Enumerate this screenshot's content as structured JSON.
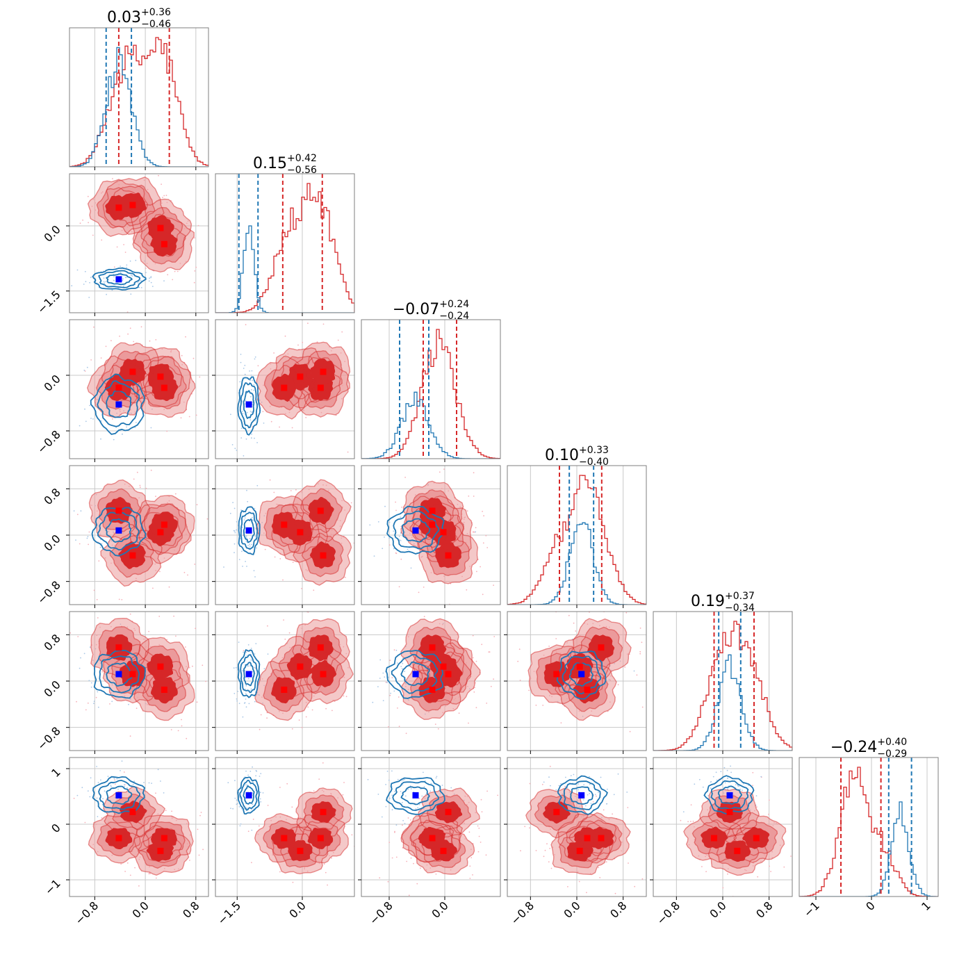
{
  "chart_data": {
    "type": "corner",
    "dimensions": 6,
    "colors": {
      "red_fill_dark": "#d62728",
      "red_fill_light": "#eb9a9b",
      "red_line": "#d62728",
      "blue_line": "#1f77b4",
      "blue_marker": "#0000ff",
      "red_marker": "#ff0000",
      "grid": "#c8c8c8",
      "axis": "#7f7f7f"
    },
    "axes": [
      {
        "range": [
          -1.2,
          1.0
        ],
        "ticks": [
          -0.8,
          0.0,
          0.8
        ],
        "tick_labels": [
          "−0.8",
          "0.0",
          "0.8"
        ]
      },
      {
        "range": [
          -2.0,
          1.2
        ],
        "ticks": [
          -1.5,
          0.0
        ],
        "tick_labels": [
          "−1.5",
          "0.0"
        ]
      },
      {
        "range": [
          -1.2,
          0.8
        ],
        "ticks": [
          -0.8,
          0.0
        ],
        "tick_labels": [
          "−0.8",
          "0.0"
        ]
      },
      {
        "range": [
          -1.2,
          1.2
        ],
        "ticks": [
          -0.8,
          0.0,
          0.8
        ],
        "tick_labels": [
          "−0.8",
          "0.0",
          "0.8"
        ]
      },
      {
        "range": [
          -1.2,
          1.2
        ],
        "ticks": [
          -0.8,
          0.0,
          0.8
        ],
        "tick_labels": [
          "−0.8",
          "0.0",
          "0.8"
        ]
      },
      {
        "range": [
          -1.3,
          1.2
        ],
        "ticks": [
          -1,
          0,
          1
        ],
        "tick_labels": [
          "−1",
          "0",
          "1"
        ]
      }
    ],
    "titles": [
      {
        "value": "0.03",
        "plus": "+0.36",
        "minus": "−0.46"
      },
      {
        "value": "0.15",
        "plus": "+0.42",
        "minus": "−0.56"
      },
      {
        "value": "−0.07",
        "plus": "+0.24",
        "minus": "−0.24"
      },
      {
        "value": "0.10",
        "plus": "+0.33",
        "minus": "−0.40"
      },
      {
        "value": "0.19",
        "plus": "+0.37",
        "minus": "−0.34"
      },
      {
        "value": "−0.24",
        "plus": "+0.40",
        "minus": "−0.29"
      }
    ],
    "blue_truth": [
      -0.42,
      -1.23,
      -0.42,
      0.08,
      0.12,
      0.52
    ],
    "red_modes": [
      [
        -0.42,
        0.42,
        -0.18,
        0.42,
        0.58,
        -0.25
      ],
      [
        -0.2,
        0.48,
        0.05,
        -0.35,
        0.12,
        0.22
      ],
      [
        0.24,
        -0.05,
        -0.02,
        0.05,
        0.25,
        -0.48
      ],
      [
        0.3,
        -0.42,
        -0.18,
        0.18,
        -0.15,
        -0.25
      ]
    ],
    "red_spread": [
      0.24,
      0.33,
      0.22,
      0.26,
      0.26,
      0.22
    ],
    "blue_mean": [
      -0.42,
      -1.23,
      -0.42,
      0.08,
      0.12,
      0.52
    ],
    "blue_sd": [
      0.2,
      0.12,
      0.2,
      0.2,
      0.2,
      0.16
    ],
    "red_quantiles": [
      [
        -0.42,
        0.38
      ],
      [
        -0.45,
        0.46
      ],
      [
        -0.31,
        0.17
      ],
      [
        -0.3,
        0.43
      ],
      [
        -0.15,
        0.54
      ],
      [
        -0.55,
        0.17
      ]
    ],
    "blue_quantiles": [
      [
        -0.62,
        -0.22
      ],
      [
        -1.46,
        -1.02
      ],
      [
        -0.65,
        -0.23
      ],
      [
        -0.13,
        0.29
      ],
      [
        -0.07,
        0.31
      ],
      [
        0.31,
        0.72
      ]
    ]
  }
}
